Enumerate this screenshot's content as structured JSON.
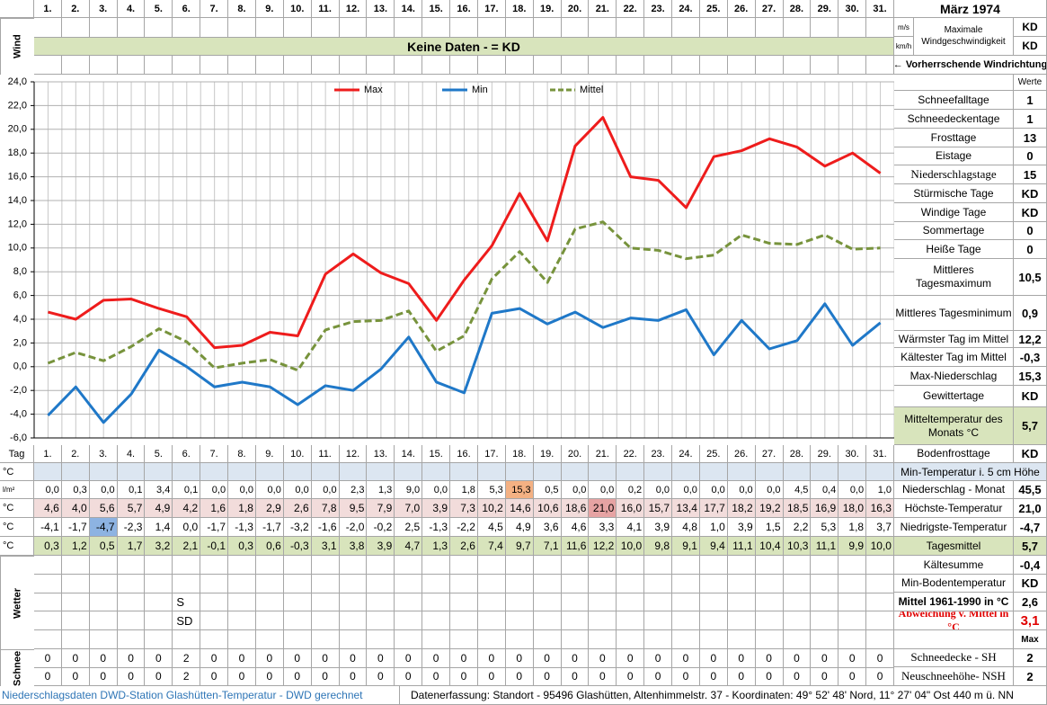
{
  "header": {
    "title": "März 1974"
  },
  "wind": {
    "label": "Wind",
    "unit_ms": "m/s",
    "unit_kmh": "km/h",
    "max_label": "Maximale Windgeschwindigkeit",
    "max_ms": "KD",
    "max_kmh": "KD",
    "banner": "Keine Daten -  = KD",
    "direction": "← Vorherrschende Windrichtung"
  },
  "chart_data": {
    "type": "line",
    "categories": [
      "1.",
      "2.",
      "3.",
      "4.",
      "5.",
      "6.",
      "7.",
      "8.",
      "9.",
      "10.",
      "11.",
      "12.",
      "13.",
      "14.",
      "15.",
      "16.",
      "17.",
      "18.",
      "19.",
      "20.",
      "21.",
      "22.",
      "23.",
      "24.",
      "25.",
      "26.",
      "27.",
      "28.",
      "29.",
      "30.",
      "31."
    ],
    "series": [
      {
        "name": "Max",
        "color": "#ee1c1c",
        "style": "solid",
        "values": [
          4.6,
          4.0,
          5.6,
          5.7,
          4.9,
          4.2,
          1.6,
          1.8,
          2.9,
          2.6,
          7.8,
          9.5,
          7.9,
          7.0,
          3.9,
          7.3,
          10.2,
          14.6,
          10.6,
          18.6,
          21.0,
          16.0,
          15.7,
          13.4,
          17.7,
          18.2,
          19.2,
          18.5,
          16.9,
          18.0,
          16.3
        ],
        "value_labels": [
          "4,6",
          "4,0",
          "5,6",
          "5,7",
          "4,9",
          "4,2",
          "1,6",
          "1,8",
          "2,9",
          "2,6",
          "7,8",
          "9,5",
          "7,9",
          "7,0",
          "3,9",
          "7,3",
          "10,2",
          "14,6",
          "10,6",
          "18,6",
          "21,0",
          "16,0",
          "15,7",
          "13,4",
          "17,7",
          "18,2",
          "19,2",
          "18,5",
          "16,9",
          "18,0",
          "16,3"
        ]
      },
      {
        "name": "Min",
        "color": "#1f78c8",
        "style": "solid",
        "values": [
          -4.1,
          -1.7,
          -4.7,
          -2.3,
          1.4,
          0.0,
          -1.7,
          -1.3,
          -1.7,
          -3.2,
          -1.6,
          -2.0,
          -0.2,
          2.5,
          -1.3,
          -2.2,
          4.5,
          4.9,
          3.6,
          4.6,
          3.3,
          4.1,
          3.9,
          4.8,
          1.0,
          3.9,
          1.5,
          2.2,
          5.3,
          1.8,
          3.7
        ],
        "value_labels": [
          "-4,1",
          "-1,7",
          "-4,7",
          "-2,3",
          "1,4",
          "0,0",
          "-1,7",
          "-1,3",
          "-1,7",
          "-3,2",
          "-1,6",
          "-2,0",
          "-0,2",
          "2,5",
          "-1,3",
          "-2,2",
          "4,5",
          "4,9",
          "3,6",
          "4,6",
          "3,3",
          "4,1",
          "3,9",
          "4,8",
          "1,0",
          "3,9",
          "1,5",
          "2,2",
          "5,3",
          "1,8",
          "3,7"
        ]
      },
      {
        "name": "Mittel",
        "color": "#77933c",
        "style": "dashed",
        "values": [
          0.3,
          1.2,
          0.5,
          1.7,
          3.2,
          2.1,
          -0.1,
          0.3,
          0.6,
          -0.3,
          3.1,
          3.8,
          3.9,
          4.7,
          1.3,
          2.6,
          7.4,
          9.7,
          7.1,
          11.6,
          12.2,
          10.0,
          9.8,
          9.1,
          9.4,
          11.1,
          10.4,
          10.3,
          11.1,
          9.9,
          10.0
        ],
        "value_labels": [
          "0,3",
          "1,2",
          "0,5",
          "1,7",
          "3,2",
          "2,1",
          "-0,1",
          "0,3",
          "0,6",
          "-0,3",
          "3,1",
          "3,8",
          "3,9",
          "4,7",
          "1,3",
          "2,6",
          "7,4",
          "9,7",
          "7,1",
          "11,6",
          "12,2",
          "10,0",
          "9,8",
          "9,1",
          "9,4",
          "11,1",
          "10,4",
          "10,3",
          "11,1",
          "9,9",
          "10,0"
        ]
      }
    ],
    "ylim": [
      -6,
      24
    ],
    "yticks": [
      {
        "value": -6,
        "label": "-6,0"
      },
      {
        "value": -4,
        "label": "-4,0"
      },
      {
        "value": -2,
        "label": "-2,0"
      },
      {
        "value": 0,
        "label": "0,0"
      },
      {
        "value": 2,
        "label": "2,0"
      },
      {
        "value": 4,
        "label": "4,0"
      },
      {
        "value": 6,
        "label": "6,0"
      },
      {
        "value": 8,
        "label": "8,0"
      },
      {
        "value": 10,
        "label": "10,0"
      },
      {
        "value": 12,
        "label": "12,0"
      },
      {
        "value": 14,
        "label": "14,0"
      },
      {
        "value": 16,
        "label": "16,0"
      },
      {
        "value": 18,
        "label": "18,0"
      },
      {
        "value": 20,
        "label": "20,0"
      },
      {
        "value": 22,
        "label": "22,0"
      },
      {
        "value": 24,
        "label": "24,0"
      }
    ],
    "grid": true,
    "legend": "top"
  },
  "table": {
    "day_label": "Tag",
    "units": {
      "blank": "°C",
      "precip": "l/m²",
      "max": "°C",
      "min": "°C",
      "mean": "°C"
    },
    "precipitation": {
      "values": [
        0,
        0.3,
        0,
        0.1,
        3.4,
        0.1,
        0,
        0,
        0,
        0,
        0,
        2.3,
        1.3,
        9.0,
        0,
        1.8,
        5.3,
        15.3,
        0.5,
        0,
        0,
        0.2,
        0,
        0,
        0,
        0,
        0,
        4.5,
        0.4,
        0,
        1.0
      ],
      "value_labels": [
        "0,0",
        "0,3",
        "0,0",
        "0,1",
        "3,4",
        "0,1",
        "0,0",
        "0,0",
        "0,0",
        "0,0",
        "0,0",
        "2,3",
        "1,3",
        "9,0",
        "0,0",
        "1,8",
        "5,3",
        "15,3",
        "0,5",
        "0,0",
        "0,0",
        "0,2",
        "0,0",
        "0,0",
        "0,0",
        "0,0",
        "0,0",
        "4,5",
        "0,4",
        "0,0",
        "1,0"
      ]
    },
    "highlight": {
      "precipitation_max": "#f4b183",
      "max_max": "#e6a3a3",
      "min_min": "#8db3e2"
    },
    "weather": {
      "label": "Wetter",
      "rows": [
        [
          null,
          null,
          null,
          null,
          null,
          "S",
          null,
          null,
          null,
          null,
          null,
          null,
          null,
          null,
          null,
          null,
          null,
          null,
          null,
          null,
          null,
          null,
          null,
          null,
          null,
          null,
          null,
          null,
          null,
          null,
          null
        ],
        [
          null,
          null,
          null,
          null,
          null,
          "SD",
          null,
          null,
          null,
          null,
          null,
          null,
          null,
          null,
          null,
          null,
          null,
          null,
          null,
          null,
          null,
          null,
          null,
          null,
          null,
          null,
          null,
          null,
          null,
          null,
          null
        ]
      ]
    },
    "snow": {
      "label": "Schnee",
      "rows": [
        [
          0,
          0,
          0,
          0,
          0,
          2,
          0,
          0,
          0,
          0,
          0,
          0,
          0,
          0,
          0,
          0,
          0,
          0,
          0,
          0,
          0,
          0,
          0,
          0,
          0,
          0,
          0,
          0,
          0,
          0,
          0
        ],
        [
          0,
          0,
          0,
          0,
          0,
          2,
          0,
          0,
          0,
          0,
          0,
          0,
          0,
          0,
          0,
          0,
          0,
          0,
          0,
          0,
          0,
          0,
          0,
          0,
          0,
          0,
          0,
          0,
          0,
          0,
          0
        ]
      ]
    }
  },
  "summary": {
    "header": "Werte",
    "rows": [
      {
        "label": "Schneefalltage",
        "value": "1"
      },
      {
        "label": "Schneedeckentage",
        "value": "1"
      },
      {
        "label": "Frosttage",
        "value": "13"
      },
      {
        "label": "Eistage",
        "value": "0"
      },
      {
        "label": "Niederschlagstage",
        "value": "15"
      },
      {
        "label": "Stürmische Tage",
        "value": "KD"
      },
      {
        "label": "Windige Tage",
        "value": "KD"
      },
      {
        "label": "Sommertage",
        "value": "0"
      },
      {
        "label": "Heiße Tage",
        "value": "0"
      },
      {
        "label": "Mittleres Tagesmaximum",
        "value": "10,5"
      },
      {
        "label": "Mittleres Tagesminimum",
        "value": "0,9"
      },
      {
        "label": "Wärmster Tag im Mittel",
        "value": "12,2"
      },
      {
        "label": "Kältester Tag im Mittel",
        "value": "-0,3"
      },
      {
        "label": "Max-Niederschlag",
        "value": "15,3"
      },
      {
        "label": "Gewittertage",
        "value": "KD"
      },
      {
        "label": "Mitteltemperatur des Monats °C",
        "value": "5,7"
      },
      {
        "label": "Bodenfrosttage",
        "value": "KD"
      },
      {
        "label": "Min-Temperatur i. 5 cm Höhe"
      },
      {
        "label": "Niederschlag - Monat",
        "value": "45,5"
      },
      {
        "label": "Höchste-Temperatur",
        "value": "21,0"
      },
      {
        "label": "Niedrigste-Temperatur",
        "value": "-4,7"
      },
      {
        "label": "Tagesmittel",
        "value": "5,7"
      },
      {
        "label": "Kältesumme",
        "value": "-0,4"
      },
      {
        "label": "Min-Bodentemperatur",
        "value": "KD"
      },
      {
        "label": "Mittel 1961-1990 in °C",
        "value": "2,6"
      },
      {
        "label": "Abweichung v. Mittel in °C",
        "value": "3,1"
      },
      {
        "value": "Max"
      },
      {
        "label": "Schneedecke -  SH",
        "value": "2"
      },
      {
        "label": "Neuschneehöhe- NSH",
        "value": "2"
      }
    ]
  },
  "footer": {
    "left": "Niederschlagsdaten DWD-Station Glashütten-Temperatur -  DWD gerechnet",
    "right": "Datenerfassung: Standort -  95496 Glashütten, Altenhimmelstr. 37 - Koordinaten: 49° 52' 48' Nord,   11° 27' 04\" Ost   440 m ü. NN"
  }
}
